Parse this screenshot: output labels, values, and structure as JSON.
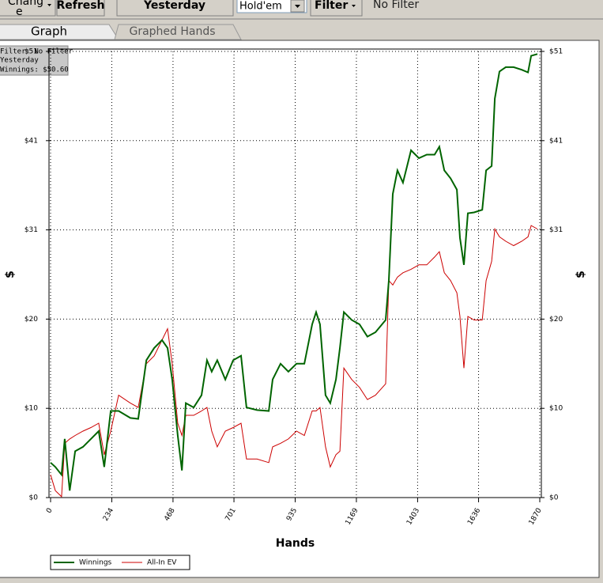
{
  "toolbar": {
    "change_button": [
      "Chang",
      "e"
    ],
    "refresh_button": "Refresh",
    "date_button": "Yesterday",
    "game_select": "Hold'em",
    "filter_button": "Filter",
    "filter_status": "No Filter"
  },
  "tabs": [
    "Graph",
    "Graphed Hands"
  ],
  "info_box": [
    "Filter: No Filter",
    "Yesterday",
    "Winnings: $50.60"
  ],
  "chart_data": {
    "type": "line",
    "x_label": "Hands",
    "y_label": "$",
    "xlim": [
      0,
      1870
    ],
    "xticks": [
      0,
      234,
      468,
      701,
      935,
      1169,
      1403,
      1636,
      1870
    ],
    "ylim": [
      0,
      51
    ],
    "yticks": [
      0,
      {
        "value": 10.2,
        "label": "$10"
      },
      {
        "value": 20.4,
        "label": "$20"
      },
      {
        "value": 30.6,
        "label": "$31"
      },
      {
        "value": 40.8,
        "label": "$41"
      },
      {
        "value": 51,
        "label": "$51"
      }
    ],
    "ytick_zero_label": "$0",
    "grid": true,
    "x": [
      0,
      18,
      42,
      54,
      73,
      94,
      124,
      154,
      184,
      205,
      230,
      260,
      305,
      335,
      366,
      396,
      426,
      447,
      465,
      486,
      502,
      517,
      547,
      577,
      598,
      616,
      637,
      668,
      698,
      728,
      749,
      789,
      834,
      849,
      879,
      909,
      940,
      970,
      1000,
      1015,
      1030,
      1051,
      1069,
      1091,
      1106,
      1121,
      1151,
      1181,
      1211,
      1242,
      1281,
      1293,
      1308,
      1326,
      1347,
      1378,
      1408,
      1438,
      1468,
      1486,
      1505,
      1529,
      1553,
      1565,
      1580,
      1595,
      1619,
      1650,
      1665,
      1686,
      1698,
      1716,
      1740,
      1770,
      1801,
      1825,
      1837,
      1861
    ],
    "series": [
      {
        "name": "Winnings",
        "color": "#006400",
        "values": [
          4.0,
          3.5,
          2.6,
          6.7,
          0.8,
          5.3,
          5.8,
          6.7,
          7.6,
          3.5,
          9.9,
          9.9,
          9.1,
          9.0,
          15.7,
          17.1,
          18.0,
          17.1,
          13.5,
          7.1,
          3.1,
          10.8,
          10.3,
          11.7,
          15.7,
          14.4,
          15.7,
          13.5,
          15.7,
          16.2,
          10.3,
          10.0,
          9.9,
          13.5,
          15.3,
          14.4,
          15.3,
          15.3,
          19.8,
          21.2,
          19.8,
          11.7,
          10.8,
          13.5,
          17.1,
          21.2,
          20.3,
          19.8,
          18.4,
          18.9,
          20.3,
          24.8,
          34.7,
          37.4,
          36.0,
          39.7,
          38.8,
          39.2,
          39.2,
          40.1,
          37.4,
          36.5,
          35.2,
          29.7,
          26.6,
          32.5,
          32.6,
          32.9,
          37.4,
          37.9,
          45.6,
          48.7,
          49.2,
          49.2,
          48.9,
          48.6,
          50.5,
          50.7
        ]
      },
      {
        "name": "All-In EV",
        "color": "#cc0000",
        "values": [
          2.6,
          0.8,
          0.1,
          6.2,
          6.7,
          7.1,
          7.6,
          8.0,
          8.5,
          4.9,
          7.6,
          11.7,
          10.8,
          10.3,
          15.3,
          16.2,
          18.0,
          19.3,
          15.3,
          8.5,
          7.1,
          9.4,
          9.4,
          9.9,
          10.3,
          7.6,
          5.8,
          7.6,
          8.0,
          8.5,
          4.4,
          4.4,
          4.0,
          5.8,
          6.2,
          6.7,
          7.6,
          7.1,
          9.9,
          9.9,
          10.3,
          5.8,
          3.5,
          4.9,
          5.3,
          14.8,
          13.5,
          12.6,
          11.2,
          11.7,
          13.0,
          24.8,
          24.3,
          25.2,
          25.7,
          26.1,
          26.6,
          26.6,
          27.5,
          28.1,
          25.7,
          24.8,
          23.4,
          20.7,
          14.8,
          20.7,
          20.3,
          20.3,
          24.8,
          27.0,
          30.7,
          29.8,
          29.3,
          28.8,
          29.3,
          29.8,
          31.1,
          30.7
        ]
      }
    ]
  }
}
